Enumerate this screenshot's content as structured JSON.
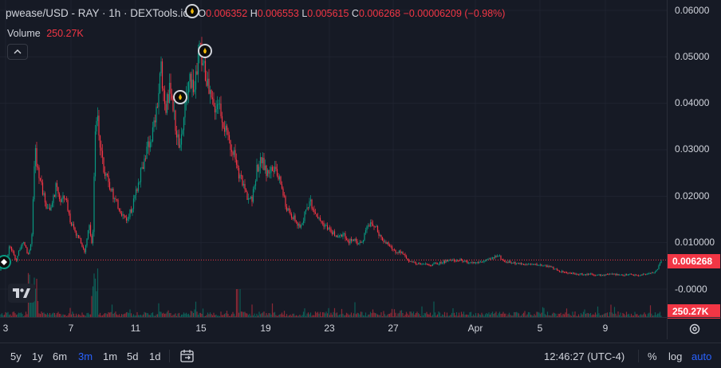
{
  "legend": {
    "symbol": "pwease/USD - RAY · 1h · DEXTools.io",
    "o_label": "O",
    "o_value": "0.006352",
    "h_label": "H",
    "h_value": "0.006553",
    "l_label": "L",
    "l_value": "0.005615",
    "c_label": "C",
    "c_value": "0.006268",
    "change": "−0.00006209 (−0.98%)",
    "volume_label": "Volume",
    "volume_value": "250.27K"
  },
  "price_axis": {
    "ticks": [
      "0.06000",
      "0.05000",
      "0.04000",
      "0.03000",
      "0.02000",
      "0.010000",
      "-0.0000"
    ],
    "last_price": "0.006268",
    "last_volume": "250.27K"
  },
  "time_axis": {
    "ticks": [
      "3",
      "7",
      "11",
      "15",
      "19",
      "23",
      "27",
      "Apr",
      "5",
      "9"
    ]
  },
  "toolbar": {
    "ranges": [
      "5y",
      "1y",
      "6m",
      "3m",
      "1m",
      "5d",
      "1d"
    ],
    "active_range": "3m",
    "clock": "12:46:27 (UTC-4)",
    "percent": "%",
    "log": "log",
    "auto": "auto"
  },
  "colors": {
    "up": "#089981",
    "down": "#f23645",
    "background": "#161a25",
    "accent": "#2962ff"
  },
  "chart_data": {
    "type": "candlestick",
    "interval": "1h",
    "ylim": [
      0,
      0.06
    ],
    "x_ticks": [
      "3",
      "7",
      "11",
      "15",
      "19",
      "23",
      "27",
      "Apr",
      "5",
      "9"
    ],
    "price_path": [
      [
        0,
        0.004
      ],
      [
        4,
        0.007
      ],
      [
        8,
        0.006
      ],
      [
        12,
        0.0095
      ],
      [
        16,
        0.008
      ],
      [
        20,
        0.006
      ],
      [
        24,
        0.0085
      ],
      [
        30,
        0.01
      ],
      [
        36,
        0.007
      ],
      [
        40,
        0.012
      ],
      [
        44,
        0.03
      ],
      [
        48,
        0.025
      ],
      [
        52,
        0.022
      ],
      [
        58,
        0.018
      ],
      [
        64,
        0.017
      ],
      [
        70,
        0.022
      ],
      [
        76,
        0.019
      ],
      [
        82,
        0.02
      ],
      [
        88,
        0.015
      ],
      [
        94,
        0.012
      ],
      [
        100,
        0.011
      ],
      [
        106,
        0.008
      ],
      [
        112,
        0.014
      ],
      [
        116,
        0.008
      ],
      [
        120,
        0.039
      ],
      [
        124,
        0.034
      ],
      [
        130,
        0.025
      ],
      [
        136,
        0.023
      ],
      [
        142,
        0.02
      ],
      [
        148,
        0.018
      ],
      [
        154,
        0.016
      ],
      [
        160,
        0.015
      ],
      [
        166,
        0.018
      ],
      [
        172,
        0.022
      ],
      [
        178,
        0.026
      ],
      [
        184,
        0.03
      ],
      [
        190,
        0.033
      ],
      [
        196,
        0.038
      ],
      [
        202,
        0.047
      ],
      [
        208,
        0.039
      ],
      [
        214,
        0.044
      ],
      [
        220,
        0.035
      ],
      [
        226,
        0.03
      ],
      [
        232,
        0.039
      ],
      [
        238,
        0.046
      ],
      [
        244,
        0.043
      ],
      [
        250,
        0.052
      ],
      [
        256,
        0.048
      ],
      [
        262,
        0.042
      ],
      [
        268,
        0.039
      ],
      [
        274,
        0.041
      ],
      [
        280,
        0.036
      ],
      [
        286,
        0.032
      ],
      [
        292,
        0.03
      ],
      [
        298,
        0.025
      ],
      [
        304,
        0.023
      ],
      [
        310,
        0.02
      ],
      [
        316,
        0.019
      ],
      [
        322,
        0.026
      ],
      [
        328,
        0.028
      ],
      [
        334,
        0.025
      ],
      [
        340,
        0.026
      ],
      [
        346,
        0.025
      ],
      [
        352,
        0.023
      ],
      [
        358,
        0.018
      ],
      [
        364,
        0.016
      ],
      [
        370,
        0.015
      ],
      [
        376,
        0.013
      ],
      [
        382,
        0.016
      ],
      [
        388,
        0.019
      ],
      [
        394,
        0.017
      ],
      [
        400,
        0.015
      ],
      [
        406,
        0.014
      ],
      [
        412,
        0.013
      ],
      [
        418,
        0.012
      ],
      [
        424,
        0.011
      ],
      [
        430,
        0.012
      ],
      [
        436,
        0.01
      ],
      [
        442,
        0.011
      ],
      [
        448,
        0.01
      ],
      [
        454,
        0.01
      ],
      [
        460,
        0.014
      ],
      [
        466,
        0.014
      ],
      [
        472,
        0.013
      ],
      [
        478,
        0.011
      ],
      [
        484,
        0.01
      ],
      [
        490,
        0.009
      ],
      [
        496,
        0.008
      ],
      [
        502,
        0.008
      ],
      [
        508,
        0.007
      ],
      [
        514,
        0.006
      ],
      [
        520,
        0.0055
      ],
      [
        530,
        0.0055
      ],
      [
        540,
        0.0052
      ],
      [
        550,
        0.0056
      ],
      [
        560,
        0.006
      ],
      [
        570,
        0.0063
      ],
      [
        578,
        0.0062
      ],
      [
        586,
        0.0058
      ],
      [
        596,
        0.0057
      ],
      [
        606,
        0.006
      ],
      [
        616,
        0.0065
      ],
      [
        624,
        0.0075
      ],
      [
        632,
        0.006
      ],
      [
        640,
        0.0058
      ],
      [
        650,
        0.0055
      ],
      [
        660,
        0.0054
      ],
      [
        670,
        0.0053
      ],
      [
        680,
        0.0052
      ],
      [
        690,
        0.0048
      ],
      [
        700,
        0.004
      ],
      [
        710,
        0.0035
      ],
      [
        720,
        0.0033
      ],
      [
        730,
        0.0032
      ],
      [
        740,
        0.0033
      ],
      [
        750,
        0.003
      ],
      [
        760,
        0.0031
      ],
      [
        770,
        0.0032
      ],
      [
        780,
        0.003
      ],
      [
        790,
        0.0031
      ],
      [
        800,
        0.003
      ],
      [
        810,
        0.0032
      ],
      [
        818,
        0.0035
      ],
      [
        824,
        0.004
      ],
      [
        829,
        0.0063
      ]
    ],
    "last_price": 0.006268,
    "last_volume_k": 250.27
  }
}
